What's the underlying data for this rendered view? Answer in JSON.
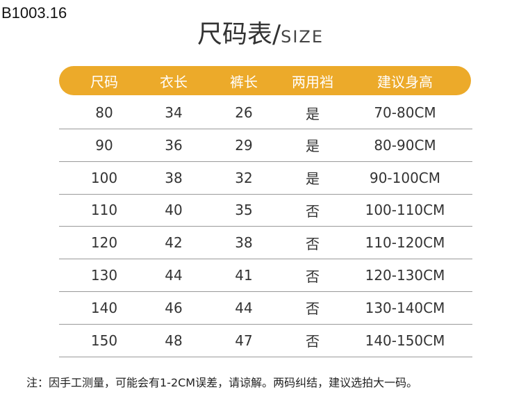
{
  "product_code": "B1003.16",
  "title": {
    "cn": "尺码表",
    "sep": "/",
    "en": "SIZE"
  },
  "colors": {
    "header_bg": "#ECAA2A"
  },
  "table": {
    "headers": [
      "尺码",
      "衣长",
      "裤长",
      "两用裆",
      "建议身高"
    ],
    "rows": [
      [
        "80",
        "34",
        "26",
        "是",
        "70-80CM"
      ],
      [
        "90",
        "36",
        "29",
        "是",
        "80-90CM"
      ],
      [
        "100",
        "38",
        "32",
        "是",
        "90-100CM"
      ],
      [
        "110",
        "40",
        "35",
        "否",
        "100-110CM"
      ],
      [
        "120",
        "42",
        "38",
        "否",
        "110-120CM"
      ],
      [
        "130",
        "44",
        "41",
        "否",
        "120-130CM"
      ],
      [
        "140",
        "46",
        "44",
        "否",
        "130-140CM"
      ],
      [
        "150",
        "48",
        "47",
        "否",
        "140-150CM"
      ]
    ]
  },
  "note": "注：因手工测量，可能会有1-2CM误差，请谅解。两码纠结，建议选拍大一码。"
}
